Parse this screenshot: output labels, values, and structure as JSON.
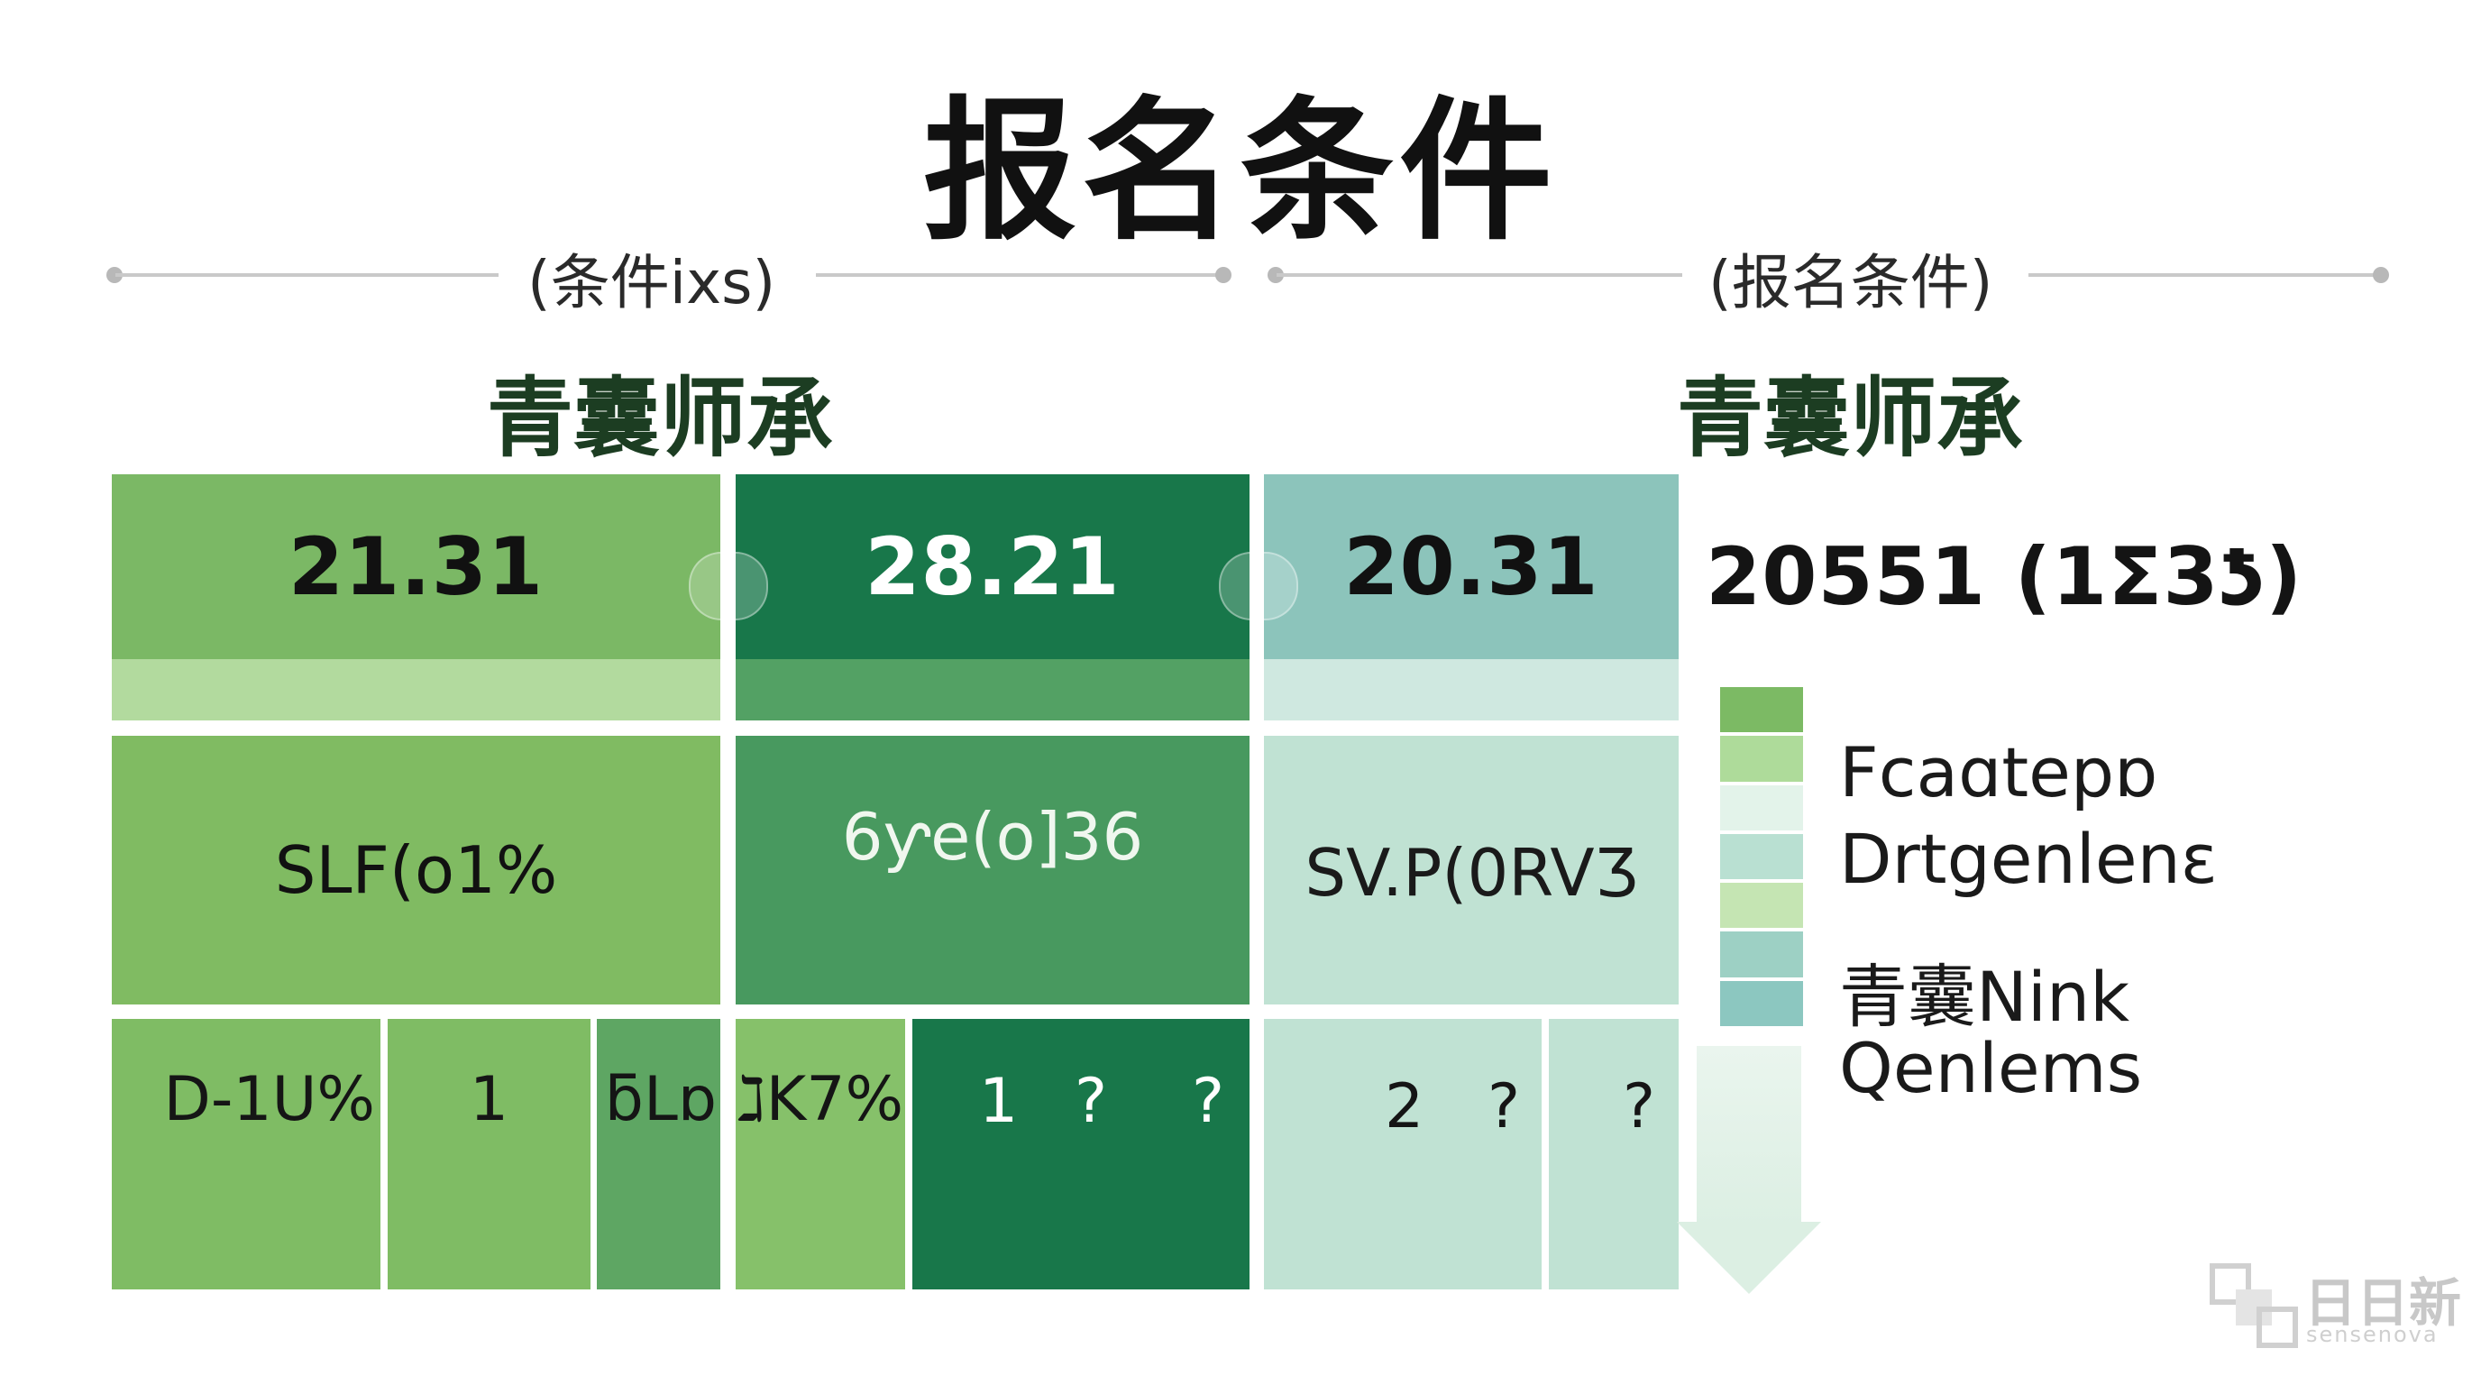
{
  "title": "报名条件",
  "subtitles": [
    "(条件ixs)",
    "(报名条件)"
  ],
  "column_heads": [
    "青囊师承",
    "青囊师承"
  ],
  "chart_data": {
    "type": "table",
    "title": "报名条件",
    "rows": [
      {
        "cells": [
          {
            "label": "21.31",
            "color": "#7bb865",
            "band": "#b2da9e",
            "text_color": "#111111"
          },
          {
            "label": "28.21",
            "color": "#18774a",
            "band": "#53a164",
            "text_color": "#ffffff"
          },
          {
            "label": "20.31",
            "color": "#8cc4bb",
            "band": "#cfe8e0",
            "text_color": "#111111"
          }
        ],
        "extra": "20551 (1Ʃ3ƾ)"
      },
      {
        "cells": [
          {
            "label": "SLF(o1%",
            "color": "#80bb62",
            "text_color": "#111111"
          },
          {
            "label": "6ƴe(o]36",
            "color": "#48995f",
            "text_color": "#f0f7ef"
          },
          {
            "label": "SV.P(0RVƷ",
            "color": "#c0e2d3",
            "text_color": "#1a1a1a"
          }
        ]
      },
      {
        "cells": [
          {
            "label": "D-1U%",
            "color": "#7fbc64"
          },
          {
            "label": "1",
            "color": "#7fbc64"
          },
          {
            "label": "ƃLɒ",
            "color": "#5ea663"
          },
          {
            "label": "ℷK7%",
            "color": "#86c16a"
          },
          {
            "label": "1",
            "color": "#18774a",
            "text_color": "#ffffff"
          },
          {
            "label": "?",
            "color": "#18774a",
            "text_color": "#ffffff"
          },
          {
            "label": "?",
            "color": "#18774a",
            "text_color": "#ffffff"
          },
          {
            "label": "2",
            "color": "#c0e2d3"
          },
          {
            "label": "?",
            "color": "#c0e2d3"
          },
          {
            "label": "?",
            "color": "#c0e2d3"
          }
        ]
      }
    ],
    "legend": {
      "placement": "right",
      "entries": [
        "Fcaɑtepɒ",
        "Drtgenlenɛ",
        "青囊Nink",
        "Qenlems"
      ],
      "swatches": [
        "#7cba64",
        "#aedb9a",
        "#e3f3ea",
        "#b9e0d2",
        "#c5e5b3",
        "#9dd0c4",
        "#8cc7c0"
      ]
    }
  },
  "watermark": {
    "text": "日日新",
    "sub": "sensenova"
  }
}
